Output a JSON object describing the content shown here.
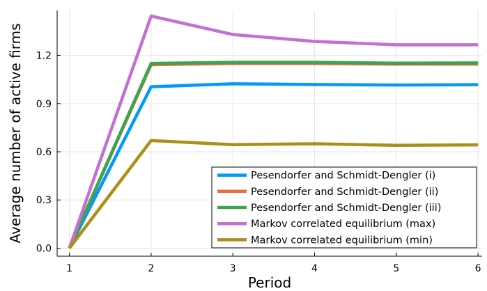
{
  "chart_data": {
    "type": "line",
    "title": "",
    "xlabel": "Period",
    "ylabel": "Average number of active firms",
    "x": [
      1,
      2,
      3,
      4,
      5,
      6
    ],
    "xlim": [
      0.85,
      6.05
    ],
    "ylim": [
      -0.05,
      1.48
    ],
    "xticks": [
      "1",
      "2",
      "3",
      "4",
      "5",
      "6"
    ],
    "yticks": [
      "0.0",
      "0.3",
      "0.6",
      "0.9",
      "1.2"
    ],
    "ytick_values": [
      0,
      0.3,
      0.6,
      0.9,
      1.2
    ],
    "grid": true,
    "legend_position": "bottom-right",
    "series": [
      {
        "name": "Pesendorfer and Schmidt-Dengler (i)",
        "color": "#009af9",
        "values": [
          0.0,
          1.005,
          1.023,
          1.019,
          1.016,
          1.018
        ]
      },
      {
        "name": "Pesendorfer and Schmidt-Dengler (ii)",
        "color": "#e26f46",
        "values": [
          0.0,
          1.142,
          1.15,
          1.15,
          1.146,
          1.146
        ]
      },
      {
        "name": "Pesendorfer and Schmidt-Dengler (iii)",
        "color": "#3da44d",
        "values": [
          0.0,
          1.15,
          1.157,
          1.157,
          1.152,
          1.153
        ]
      },
      {
        "name": "Markov correlated equilibrium (max)",
        "color": "#c271d2",
        "values": [
          0.0,
          1.445,
          1.33,
          1.287,
          1.266,
          1.266
        ]
      },
      {
        "name": "Markov correlated equilibrium (min)",
        "color": "#ac8e18",
        "values": [
          0.0,
          0.67,
          0.645,
          0.65,
          0.64,
          0.643
        ]
      }
    ]
  }
}
